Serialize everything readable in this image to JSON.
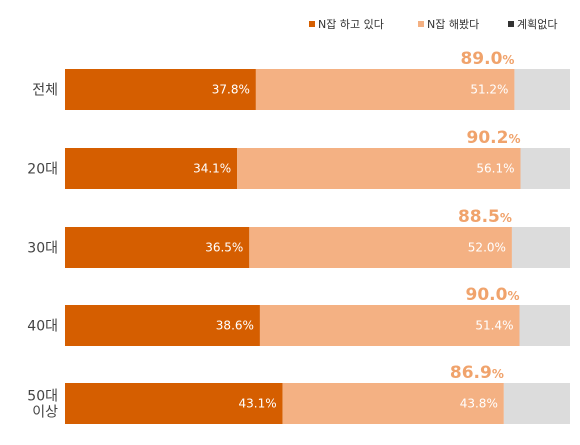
{
  "colors": {
    "doing": "#d55e00",
    "tried": "#f4b183",
    "none": "#dcdcdc",
    "total_text": "#f0a36c"
  },
  "legend": [
    {
      "label": "N잡 하고 있다",
      "color_key": "doing"
    },
    {
      "label": "N잡 해봤다",
      "color_key": "tried"
    },
    {
      "label": "계획없다",
      "color_key": "legend_none"
    }
  ],
  "legend_colors": {
    "legend_none": "#333333"
  },
  "chart_data": {
    "type": "bar",
    "orientation": "horizontal",
    "stacked": true,
    "categories": [
      "전체",
      "20대",
      "30대",
      "40대",
      "50대\n이상"
    ],
    "series": [
      {
        "name": "N잡 하고 있다",
        "values": [
          37.8,
          34.1,
          36.5,
          38.6,
          43.1
        ],
        "labels": [
          "37.8%",
          "34.1%",
          "36.5%",
          "38.6%",
          "43.1%"
        ]
      },
      {
        "name": "N잡 해봤다",
        "values": [
          51.2,
          56.1,
          52.0,
          51.4,
          43.8
        ],
        "labels": [
          "51.2%",
          "56.1%",
          "52.0%",
          "51.4%",
          "43.8%"
        ]
      },
      {
        "name": "계획없다",
        "values": [
          11.0,
          9.8,
          11.5,
          10.0,
          13.1
        ]
      }
    ],
    "totals": [
      {
        "value": "89.0",
        "unit": "%"
      },
      {
        "value": "90.2",
        "unit": "%"
      },
      {
        "value": "88.5",
        "unit": "%"
      },
      {
        "value": "90.0",
        "unit": "%"
      },
      {
        "value": "86.9",
        "unit": "%"
      }
    ],
    "xlim": [
      0,
      100
    ],
    "legend_position": "top-right",
    "grid": false
  }
}
